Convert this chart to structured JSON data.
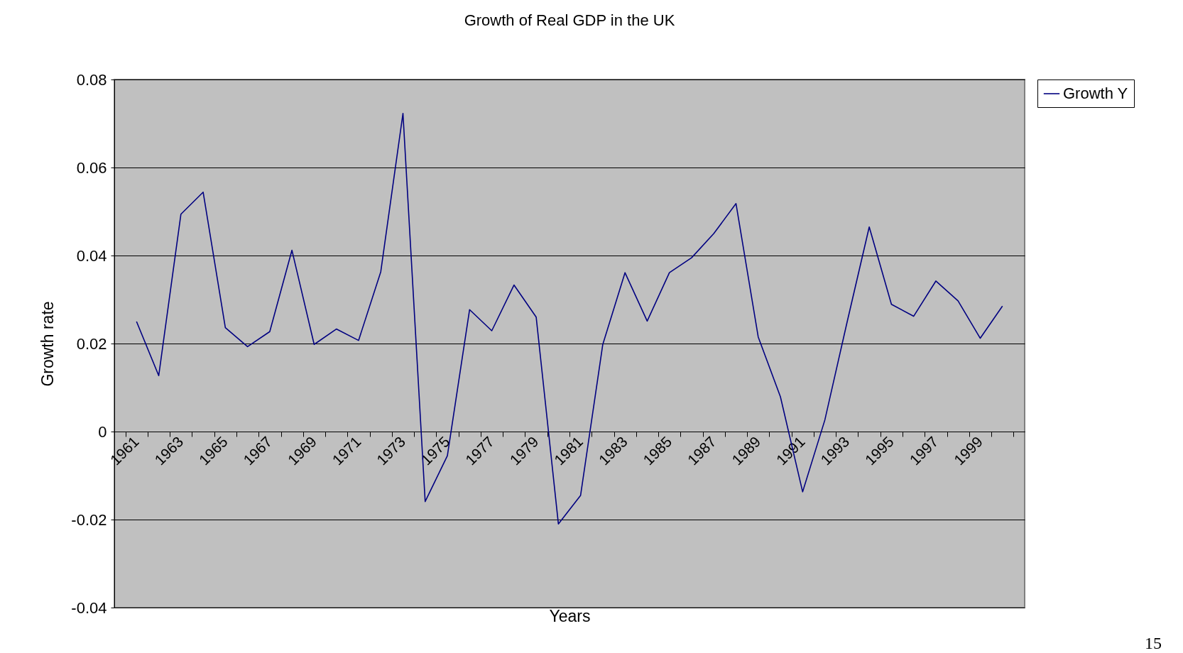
{
  "chart_data": {
    "type": "line",
    "title": "Growth  of Real GDP in the UK",
    "xlabel": "Years",
    "ylabel": "Growth rate",
    "categories": [
      "1961",
      null,
      "1963",
      null,
      "1965",
      null,
      "1967",
      null,
      "1969",
      null,
      "1971",
      null,
      "1973",
      null,
      "1975",
      null,
      "1977",
      null,
      "1979",
      null,
      "1981",
      null,
      "1983",
      null,
      "1985",
      null,
      "1987",
      null,
      "1989",
      null,
      "1991",
      null,
      "1993",
      null,
      "1995",
      null,
      "1997",
      null,
      "1999",
      null
    ],
    "series": [
      {
        "name": "Growth Y",
        "color": "#000080",
        "values": [
          0.025,
          0.0127,
          0.0494,
          0.0544,
          0.0236,
          0.0193,
          0.0227,
          0.0412,
          0.0198,
          0.0233,
          0.0207,
          0.0363,
          0.0723,
          -0.0159,
          -0.0055,
          0.0277,
          0.0229,
          0.0333,
          0.026,
          -0.021,
          -0.0145,
          0.0198,
          0.0361,
          0.0251,
          0.0361,
          0.0395,
          0.045,
          0.0518,
          0.0215,
          0.0079,
          -0.0137,
          0.0026,
          0.0248,
          0.0465,
          0.0289,
          0.0262,
          0.0342,
          0.0297,
          0.0212,
          0.0285
        ]
      }
    ],
    "ylim": [
      -0.04,
      0.08
    ],
    "yticks": [
      -0.04,
      -0.02,
      0,
      0.02,
      0.04,
      0.06,
      0.08
    ],
    "grid": "y",
    "legend": "right",
    "annotations": [
      "15"
    ]
  }
}
